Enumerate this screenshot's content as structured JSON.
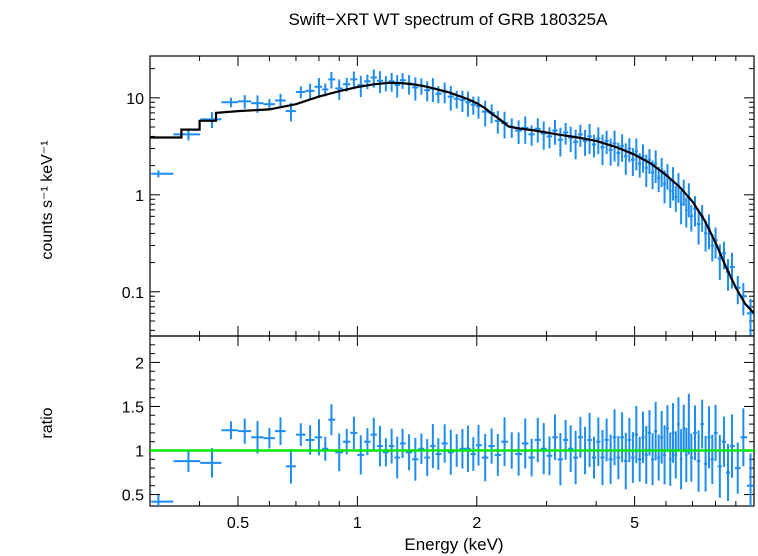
{
  "chart_data": {
    "type": "scatter",
    "title": "Swift−XRT WT spectrum of GRB 180325A",
    "xlabel": "Energy (keV)",
    "x_scale": "log",
    "xlim": [
      0.3,
      10
    ],
    "x_ticks": [
      {
        "value": 0.5,
        "label": "0.5"
      },
      {
        "value": 1,
        "label": "1"
      },
      {
        "value": 2,
        "label": "2"
      },
      {
        "value": 5,
        "label": "5"
      }
    ],
    "colors": {
      "data": "#1e8cf0",
      "model": "#000000",
      "unity": "#00e600",
      "axes": "#000000"
    },
    "panels": [
      {
        "name": "spectrum",
        "ylabel": "counts s⁻¹ keV⁻¹",
        "y_scale": "log",
        "ylim": [
          0.035,
          27
        ],
        "y_ticks": [
          {
            "value": 10,
            "label": "10"
          },
          {
            "value": 1,
            "label": "1"
          },
          {
            "value": 0.1,
            "label": "0.1"
          }
        ],
        "model": [
          [
            0.3,
            3.9
          ],
          [
            0.36,
            3.9
          ],
          [
            0.36,
            4.7
          ],
          [
            0.4,
            4.7
          ],
          [
            0.4,
            5.8
          ],
          [
            0.44,
            5.8
          ],
          [
            0.44,
            7.0
          ],
          [
            0.5,
            7.3
          ],
          [
            0.6,
            7.6
          ],
          [
            0.7,
            8.6
          ],
          [
            0.8,
            10.3
          ],
          [
            0.9,
            11.7
          ],
          [
            1.0,
            12.9
          ],
          [
            1.1,
            13.8
          ],
          [
            1.2,
            14.3
          ],
          [
            1.3,
            14.2
          ],
          [
            1.4,
            13.7
          ],
          [
            1.5,
            13.0
          ],
          [
            1.7,
            11.4
          ],
          [
            1.9,
            9.7
          ],
          [
            2.0,
            8.8
          ],
          [
            2.1,
            7.8
          ],
          [
            2.2,
            6.7
          ],
          [
            2.3,
            5.9
          ],
          [
            2.4,
            5.1
          ],
          [
            2.5,
            4.9
          ],
          [
            2.8,
            4.6
          ],
          [
            3.2,
            4.2
          ],
          [
            3.6,
            3.9
          ],
          [
            4.0,
            3.6
          ],
          [
            4.5,
            3.1
          ],
          [
            5.0,
            2.6
          ],
          [
            5.5,
            2.1
          ],
          [
            6.0,
            1.6
          ],
          [
            6.5,
            1.2
          ],
          [
            7.0,
            0.85
          ],
          [
            7.5,
            0.55
          ],
          [
            8.0,
            0.32
          ],
          [
            8.5,
            0.18
          ],
          [
            9.0,
            0.11
          ],
          [
            9.5,
            0.075
          ],
          [
            10.0,
            0.06
          ]
        ],
        "points": [
          [
            0.315,
            1.65
          ],
          [
            0.375,
            4.2
          ],
          [
            0.43,
            6.0
          ],
          [
            0.48,
            9.0
          ],
          [
            0.52,
            9.2
          ],
          [
            0.56,
            8.8
          ],
          [
            0.6,
            8.6
          ],
          [
            0.64,
            9.4
          ],
          [
            0.68,
            7.3
          ],
          [
            0.72,
            11.5
          ],
          [
            0.76,
            11.8
          ],
          [
            0.8,
            13.0
          ],
          [
            0.83,
            12.2
          ],
          [
            0.86,
            15.5
          ],
          [
            0.9,
            12.5
          ],
          [
            0.94,
            13.8
          ],
          [
            0.98,
            15.5
          ],
          [
            1.02,
            13.5
          ],
          [
            1.06,
            14.8
          ],
          [
            1.1,
            16.2
          ],
          [
            1.14,
            15.0
          ],
          [
            1.18,
            14.2
          ],
          [
            1.22,
            14.8
          ],
          [
            1.26,
            13.6
          ],
          [
            1.3,
            15.2
          ],
          [
            1.35,
            14.0
          ],
          [
            1.4,
            12.8
          ],
          [
            1.45,
            13.3
          ],
          [
            1.5,
            12.0
          ],
          [
            1.55,
            12.5
          ],
          [
            1.6,
            11.0
          ],
          [
            1.66,
            11.6
          ],
          [
            1.72,
            10.3
          ],
          [
            1.78,
            9.8
          ],
          [
            1.84,
            9.5
          ],
          [
            1.9,
            9.0
          ],
          [
            1.96,
            8.5
          ],
          [
            2.02,
            8.2
          ],
          [
            2.1,
            7.2
          ],
          [
            2.18,
            7.0
          ],
          [
            2.26,
            5.8
          ],
          [
            2.35,
            5.5
          ],
          [
            2.45,
            5.0
          ],
          [
            2.55,
            4.6
          ],
          [
            2.65,
            4.9
          ],
          [
            2.75,
            4.2
          ],
          [
            2.85,
            4.8
          ],
          [
            2.95,
            4.3
          ],
          [
            3.05,
            4.0
          ],
          [
            3.15,
            4.6
          ],
          [
            3.25,
            3.7
          ],
          [
            3.35,
            4.4
          ],
          [
            3.45,
            3.9
          ],
          [
            3.55,
            3.5
          ],
          [
            3.65,
            4.2
          ],
          [
            3.75,
            3.6
          ],
          [
            3.85,
            4.0
          ],
          [
            3.95,
            3.3
          ],
          [
            4.05,
            3.8
          ],
          [
            4.15,
            3.1
          ],
          [
            4.25,
            3.6
          ],
          [
            4.35,
            2.9
          ],
          [
            4.45,
            3.4
          ],
          [
            4.55,
            2.7
          ],
          [
            4.65,
            3.2
          ],
          [
            4.75,
            2.5
          ],
          [
            4.85,
            3.0
          ],
          [
            4.95,
            2.3
          ],
          [
            5.05,
            2.8
          ],
          [
            5.15,
            2.1
          ],
          [
            5.25,
            2.5
          ],
          [
            5.35,
            1.9
          ],
          [
            5.45,
            2.3
          ],
          [
            5.55,
            1.7
          ],
          [
            5.65,
            2.1
          ],
          [
            5.75,
            1.5
          ],
          [
            5.85,
            1.8
          ],
          [
            5.95,
            1.3
          ],
          [
            6.05,
            1.6
          ],
          [
            6.15,
            1.1
          ],
          [
            6.25,
            1.4
          ],
          [
            6.35,
            0.95
          ],
          [
            6.45,
            1.25
          ],
          [
            6.55,
            0.8
          ],
          [
            6.65,
            1.1
          ],
          [
            6.75,
            0.7
          ],
          [
            6.85,
            0.95
          ],
          [
            6.95,
            0.6
          ],
          [
            7.1,
            0.72
          ],
          [
            7.25,
            0.5
          ],
          [
            7.4,
            0.6
          ],
          [
            7.55,
            0.4
          ],
          [
            7.7,
            0.45
          ],
          [
            7.85,
            0.3
          ],
          [
            8.0,
            0.34
          ],
          [
            8.2,
            0.22
          ],
          [
            8.4,
            0.25
          ],
          [
            8.6,
            0.16
          ],
          [
            8.8,
            0.18
          ],
          [
            9.1,
            0.11
          ],
          [
            9.4,
            0.09
          ],
          [
            9.8,
            0.06
          ]
        ]
      },
      {
        "name": "ratio",
        "ylabel": "ratio",
        "y_scale": "linear",
        "ylim": [
          0.37,
          2.3
        ],
        "y_ticks": [
          {
            "value": 2,
            "label": "2"
          },
          {
            "value": 1.5,
            "label": "1.5"
          },
          {
            "value": 1,
            "label": "1"
          },
          {
            "value": 0.5,
            "label": "0.5"
          }
        ],
        "reference_line": 1,
        "points": [
          [
            0.315,
            0.42
          ],
          [
            0.375,
            0.88
          ],
          [
            0.43,
            0.86
          ],
          [
            0.48,
            1.23
          ],
          [
            0.52,
            1.22
          ],
          [
            0.56,
            1.15
          ],
          [
            0.6,
            1.14
          ],
          [
            0.64,
            1.22
          ],
          [
            0.68,
            0.82
          ],
          [
            0.72,
            1.18
          ],
          [
            0.76,
            1.12
          ],
          [
            0.8,
            1.15
          ],
          [
            0.83,
            1.02
          ],
          [
            0.86,
            1.35
          ],
          [
            0.9,
            0.98
          ],
          [
            0.94,
            1.1
          ],
          [
            0.98,
            1.2
          ],
          [
            1.02,
            0.95
          ],
          [
            1.06,
            1.1
          ],
          [
            1.1,
            1.18
          ],
          [
            1.14,
            1.05
          ],
          [
            1.18,
            0.98
          ],
          [
            1.22,
            1.05
          ],
          [
            1.26,
            0.92
          ],
          [
            1.3,
            1.08
          ],
          [
            1.35,
            0.98
          ],
          [
            1.4,
            0.9
          ],
          [
            1.45,
            1.02
          ],
          [
            1.5,
            0.92
          ],
          [
            1.55,
            1.05
          ],
          [
            1.6,
            0.96
          ],
          [
            1.66,
            1.08
          ],
          [
            1.72,
            0.98
          ],
          [
            1.78,
            1.0
          ],
          [
            1.84,
            1.02
          ],
          [
            1.9,
            1.02
          ],
          [
            1.96,
            0.96
          ],
          [
            2.02,
            1.06
          ],
          [
            2.1,
            0.92
          ],
          [
            2.18,
            1.05
          ],
          [
            2.26,
            0.95
          ],
          [
            2.35,
            1.1
          ],
          [
            2.45,
            1.0
          ],
          [
            2.55,
            0.96
          ],
          [
            2.65,
            1.08
          ],
          [
            2.75,
            0.92
          ],
          [
            2.85,
            1.12
          ],
          [
            2.95,
            1.02
          ],
          [
            3.05,
            0.94
          ],
          [
            3.15,
            1.15
          ],
          [
            3.25,
            0.9
          ],
          [
            3.35,
            1.12
          ],
          [
            3.45,
            1.02
          ],
          [
            3.55,
            0.92
          ],
          [
            3.65,
            1.15
          ],
          [
            3.75,
            1.0
          ],
          [
            3.85,
            1.12
          ],
          [
            3.95,
            0.92
          ],
          [
            4.05,
            1.1
          ],
          [
            4.15,
            0.92
          ],
          [
            4.25,
            1.12
          ],
          [
            4.35,
            0.9
          ],
          [
            4.45,
            1.15
          ],
          [
            4.55,
            0.92
          ],
          [
            4.65,
            1.15
          ],
          [
            4.75,
            0.88
          ],
          [
            4.85,
            1.12
          ],
          [
            4.95,
            0.92
          ],
          [
            5.05,
            1.18
          ],
          [
            5.15,
            0.9
          ],
          [
            5.25,
            1.15
          ],
          [
            5.35,
            0.95
          ],
          [
            5.45,
            1.2
          ],
          [
            5.55,
            0.9
          ],
          [
            5.65,
            1.22
          ],
          [
            5.75,
            0.92
          ],
          [
            5.85,
            1.15
          ],
          [
            5.95,
            0.95
          ],
          [
            6.05,
            1.25
          ],
          [
            6.15,
            0.9
          ],
          [
            6.25,
            1.2
          ],
          [
            6.35,
            0.95
          ],
          [
            6.45,
            1.3
          ],
          [
            6.55,
            0.9
          ],
          [
            6.65,
            1.25
          ],
          [
            6.75,
            0.95
          ],
          [
            6.85,
            1.3
          ],
          [
            6.95,
            0.92
          ],
          [
            7.1,
            1.2
          ],
          [
            7.25,
            0.88
          ],
          [
            7.4,
            1.3
          ],
          [
            7.55,
            0.85
          ],
          [
            7.7,
            1.15
          ],
          [
            7.85,
            0.9
          ],
          [
            8.0,
            1.2
          ],
          [
            8.2,
            0.82
          ],
          [
            8.4,
            1.1
          ],
          [
            8.6,
            0.75
          ],
          [
            8.8,
            1.05
          ],
          [
            9.1,
            0.8
          ],
          [
            9.4,
            1.15
          ],
          [
            9.8,
            0.6
          ]
        ]
      }
    ]
  }
}
